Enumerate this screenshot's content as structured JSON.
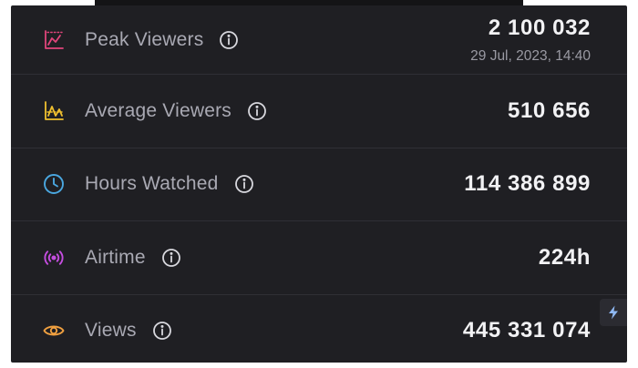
{
  "colors": {
    "background": "#1f1f23",
    "divider": "#2f2f35",
    "label": "#a9a9b3",
    "value": "#f2f2f4",
    "subtext": "#9a9aa3",
    "peak_icon": "#e0457b",
    "average_icon": "#f0c02f",
    "hours_icon": "#4aa7e0",
    "airtime_icon": "#c44ddf",
    "views_icon": "#f0a040",
    "bolt_icon": "#8fb8f2"
  },
  "stats": {
    "peak": {
      "icon": "peak-chart-icon",
      "label": "Peak Viewers",
      "value": "2 100 032",
      "date": "29 Jul, 2023, 14:40"
    },
    "average": {
      "icon": "average-chart-icon",
      "label": "Average Viewers",
      "value": "510 656"
    },
    "hours": {
      "icon": "clock-icon",
      "label": "Hours Watched",
      "value": "114 386 899"
    },
    "airtime": {
      "icon": "broadcast-icon",
      "label": "Airtime",
      "value": "224h"
    },
    "views": {
      "icon": "eye-icon",
      "label": "Views",
      "value": "445 331 074"
    }
  },
  "side_button": {
    "icon": "lightning-icon"
  }
}
